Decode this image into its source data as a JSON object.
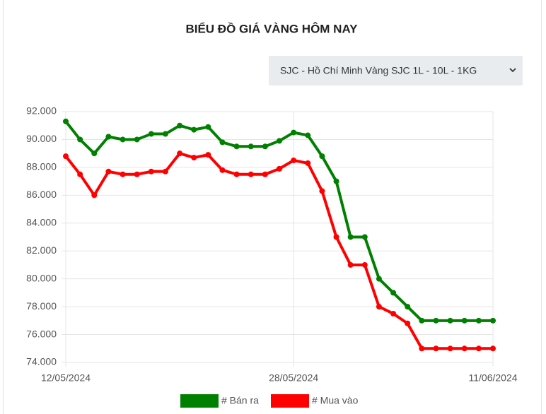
{
  "chart_data": {
    "type": "line",
    "title": "BIỂU ĐỒ GIÁ VÀNG HÔM NAY",
    "selector": "SJC - Hồ Chí Minh Vàng SJC 1L - 10L - 1KG",
    "categories": [
      "12/05/2024",
      null,
      null,
      null,
      null,
      null,
      null,
      null,
      null,
      null,
      null,
      null,
      null,
      null,
      null,
      null,
      "28/05/2024",
      null,
      null,
      null,
      null,
      null,
      null,
      null,
      null,
      null,
      null,
      null,
      null,
      null,
      "11/06/2024"
    ],
    "series": [
      {
        "name": "# Bán ra",
        "color": "#008000",
        "values": [
          91300,
          90000,
          89000,
          90200,
          90000,
          90000,
          90400,
          90400,
          91000,
          90700,
          90900,
          89800,
          89500,
          89500,
          89500,
          89900,
          90500,
          90300,
          88800,
          87000,
          83000,
          83000,
          80000,
          79000,
          78000,
          77000,
          77000,
          77000,
          77000,
          77000,
          77000
        ]
      },
      {
        "name": "# Mua vào",
        "color": "#ff0000",
        "values": [
          88800,
          87500,
          86000,
          87700,
          87500,
          87500,
          87700,
          87700,
          89000,
          88700,
          88900,
          87800,
          87500,
          87500,
          87500,
          87900,
          88500,
          88300,
          86300,
          83000,
          81000,
          81000,
          78000,
          77500,
          76800,
          75000,
          75000,
          75000,
          75000,
          75000,
          75000
        ]
      }
    ],
    "ylim": [
      74000,
      92000
    ],
    "yticks": [
      {
        "value": 74000,
        "label": "74.000"
      },
      {
        "value": 76000,
        "label": "76.000"
      },
      {
        "value": 78000,
        "label": "78.000"
      },
      {
        "value": 80000,
        "label": "80.000"
      },
      {
        "value": 82000,
        "label": "82.000"
      },
      {
        "value": 84000,
        "label": "84.000"
      },
      {
        "value": 86000,
        "label": "86.000"
      },
      {
        "value": 88000,
        "label": "88.000"
      },
      {
        "value": 90000,
        "label": "90.000"
      },
      {
        "value": 92000,
        "label": "92.000"
      }
    ],
    "grid": true
  }
}
